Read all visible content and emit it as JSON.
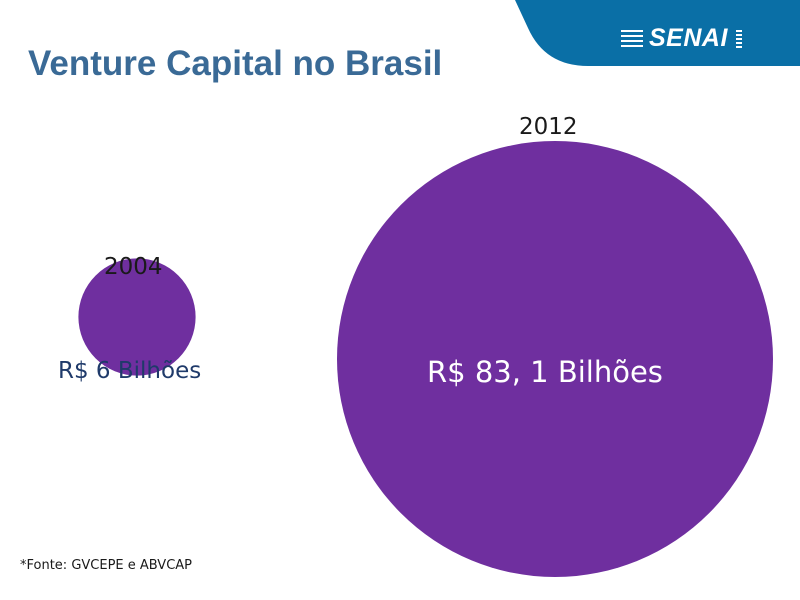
{
  "header": {
    "logo_text": "SENAI",
    "band_color": "#0a6fa6"
  },
  "title": "Venture Capital no Brasil",
  "chart_data": {
    "type": "bubble",
    "title": "Venture Capital no Brasil",
    "unit": "R$ Bilhões",
    "points": [
      {
        "year": "2004",
        "value": 6,
        "label": "R$ 6 Bilhões",
        "color": "#6f2f9f"
      },
      {
        "year": "2012",
        "value": 83.1,
        "label": "R$ 83, 1 Bilhões",
        "color": "#6f2f9f"
      }
    ]
  },
  "source": "*Fonte: GVCEPE e ABVCAP"
}
